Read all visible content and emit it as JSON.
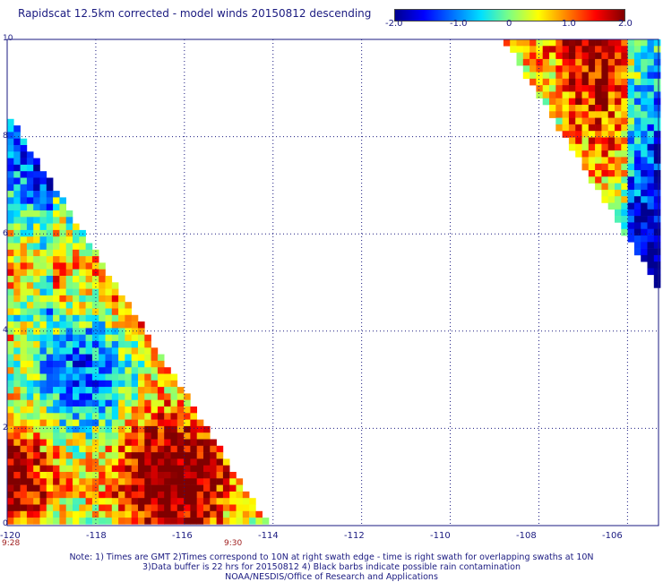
{
  "title": "Rapidscat 12.5km corrected - model winds 20150812 descending",
  "colorbar": {
    "labels": [
      "-2.0",
      "-1.0",
      "0",
      "1.0",
      "2.0"
    ],
    "range": [
      -2.0,
      2.0
    ]
  },
  "y_ticks": [
    "10",
    "8",
    "6",
    "4",
    "2",
    "0"
  ],
  "x_ticks": [
    "-120",
    "-118",
    "-116",
    "-114",
    "-112",
    "-110",
    "-108",
    "-106"
  ],
  "time_labels": [
    "9:28",
    "9:30"
  ],
  "notes": [
    "Note: 1) Times are GMT 2)Times correspond to 10N at right swath edge - time is right swath for overlapping swaths at 10N",
    "3)Data buffer is 22 hrs for 20150812 4) Black barbs indicate possible rain contamination",
    "NOAA/NESDIS/Office of Research and Applications"
  ],
  "map": {
    "lon_range": [
      -120,
      -105.3
    ],
    "lat_range": [
      0,
      10
    ],
    "swaths": [
      {
        "name": "left swath",
        "vertices_lonlat": [
          [
            -120,
            8.5
          ],
          [
            -120,
            0
          ],
          [
            -114.1,
            0
          ]
        ]
      },
      {
        "name": "right swath",
        "vertices_lonlat": [
          [
            -108.8,
            10
          ],
          [
            -105.3,
            10
          ],
          [
            -105.3,
            4.9
          ]
        ]
      }
    ]
  },
  "colors": {
    "text": "#1a1a80",
    "time": "#a02020",
    "grid": "#1a1a80"
  }
}
